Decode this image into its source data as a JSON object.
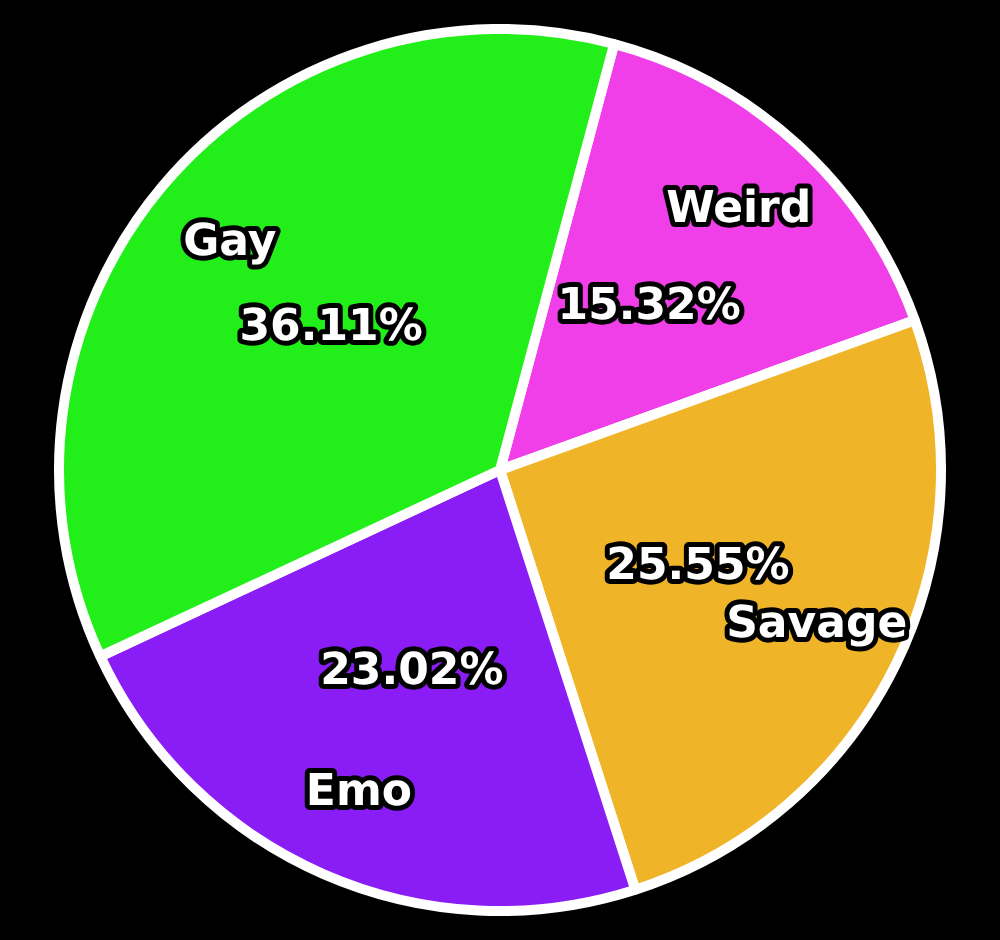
{
  "chart_data": {
    "type": "pie",
    "categories": [
      "Weird",
      "Savage",
      "Emo",
      "Gay"
    ],
    "values": [
      15.32,
      25.55,
      23.02,
      36.11
    ],
    "value_labels": [
      "15.32%",
      "25.55%",
      "23.02%",
      "36.11%"
    ],
    "colors": [
      "#f03ee8",
      "#f0b429",
      "#8a1cf5",
      "#22ee1a"
    ],
    "legend": false
  }
}
